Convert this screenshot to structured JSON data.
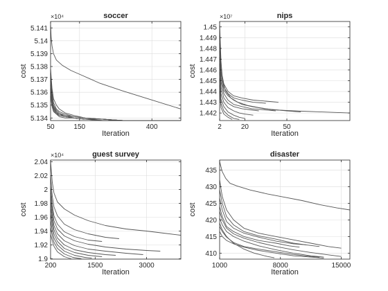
{
  "chart_data": [
    {
      "type": "line",
      "title": "soccer",
      "xlabel": "Iteration",
      "ylabel": "cost",
      "y_multiplier": "×10⁴",
      "xlim": [
        50,
        500
      ],
      "ylim": [
        5.1338,
        5.1415
      ],
      "xticks": [
        50,
        150,
        400
      ],
      "yticks": [
        5.134,
        5.135,
        5.136,
        5.137,
        5.138,
        5.139,
        5.14,
        5.141
      ],
      "ytick_labels": [
        "5.134",
        "5.135",
        "5.136",
        "5.137",
        "5.138",
        "5.139",
        "5.14",
        "5.141"
      ],
      "grid": true,
      "series": [
        {
          "x": [
            50,
            52,
            55,
            60,
            70,
            90,
            120,
            160,
            220,
            300,
            400,
            500
          ],
          "y": [
            5.1412,
            5.1403,
            5.1396,
            5.139,
            5.1385,
            5.1381,
            5.1377,
            5.1373,
            5.1367,
            5.1361,
            5.1354,
            5.1347
          ]
        },
        {
          "x": [
            50,
            55,
            60,
            70,
            80,
            100,
            130,
            170,
            230,
            300,
            400,
            500
          ],
          "y": [
            5.1378,
            5.1363,
            5.1355,
            5.135,
            5.1347,
            5.1344,
            5.1342,
            5.134,
            5.1339,
            5.1338,
            5.1338,
            5.1338
          ]
        },
        {
          "x": [
            50,
            55,
            60,
            70,
            80,
            100,
            130,
            170,
            230,
            300,
            400,
            500
          ],
          "y": [
            5.1375,
            5.136,
            5.1352,
            5.1347,
            5.1345,
            5.1343,
            5.1341,
            5.134,
            5.1339,
            5.1338,
            5.1338,
            5.1338
          ]
        },
        {
          "x": [
            50,
            55,
            60,
            70,
            80,
            100,
            130,
            170,
            230,
            300,
            400,
            500
          ],
          "y": [
            5.1372,
            5.1358,
            5.135,
            5.1346,
            5.1344,
            5.1342,
            5.1341,
            5.134,
            5.1339,
            5.1338,
            5.1338,
            5.1338
          ]
        },
        {
          "x": [
            50,
            55,
            60,
            70,
            80,
            100,
            130,
            170,
            230,
            300,
            400,
            500
          ],
          "y": [
            5.1369,
            5.1356,
            5.1349,
            5.1345,
            5.1343,
            5.1342,
            5.134,
            5.1339,
            5.1339,
            5.1338,
            5.1338,
            5.1338
          ]
        },
        {
          "x": [
            50,
            55,
            60,
            70,
            80,
            100,
            130,
            170,
            230,
            300,
            400,
            500
          ],
          "y": [
            5.1366,
            5.1354,
            5.1348,
            5.1344,
            5.1343,
            5.1341,
            5.134,
            5.1339,
            5.1339,
            5.1338,
            5.1338,
            5.1338
          ]
        },
        {
          "x": [
            50,
            55,
            60,
            70,
            80,
            100,
            130,
            170,
            230,
            300,
            400,
            500
          ],
          "y": [
            5.1363,
            5.1352,
            5.1347,
            5.1344,
            5.1342,
            5.1341,
            5.134,
            5.1339,
            5.1339,
            5.1338,
            5.1338,
            5.1338
          ]
        },
        {
          "x": [
            50,
            55,
            60,
            70,
            80,
            100,
            130,
            170,
            230,
            300,
            400,
            500
          ],
          "y": [
            5.136,
            5.135,
            5.1346,
            5.1343,
            5.1342,
            5.1341,
            5.134,
            5.1339,
            5.1338,
            5.1338,
            5.1338,
            5.1338
          ]
        },
        {
          "x": [
            50,
            55,
            60,
            70,
            80,
            100,
            130,
            170,
            230,
            300,
            400,
            500
          ],
          "y": [
            5.1357,
            5.1349,
            5.1345,
            5.1343,
            5.1341,
            5.134,
            5.134,
            5.1339,
            5.1338,
            5.1338,
            5.1338,
            5.1338
          ]
        }
      ]
    },
    {
      "type": "line",
      "title": "nips",
      "xlabel": "Iteration",
      "ylabel": "cost",
      "y_multiplier": "×10⁷",
      "xlim": [
        2,
        95
      ],
      "ylim": [
        1.4413,
        1.4505
      ],
      "xticks": [
        2,
        20,
        50
      ],
      "yticks": [
        1.442,
        1.443,
        1.444,
        1.445,
        1.446,
        1.447,
        1.448,
        1.449,
        1.45
      ],
      "ytick_labels": [
        "1.442",
        "1.443",
        "1.444",
        "1.445",
        "1.446",
        "1.447",
        "1.448",
        "1.449",
        "1.45"
      ],
      "grid": true,
      "series": [
        {
          "x": [
            2,
            3,
            4,
            6,
            10,
            15,
            22,
            30,
            40,
            55,
            75,
            95
          ],
          "y": [
            1.4502,
            1.4468,
            1.4452,
            1.4441,
            1.4434,
            1.443,
            1.4427,
            1.4425,
            1.4423,
            1.4422,
            1.4421,
            1.442
          ]
        },
        {
          "x": [
            2,
            3,
            5,
            8,
            12,
            18,
            26,
            35,
            44
          ],
          "y": [
            1.4492,
            1.446,
            1.4447,
            1.444,
            1.4436,
            1.4434,
            1.4432,
            1.4431,
            1.443
          ]
        },
        {
          "x": [
            2,
            3,
            5,
            8,
            12,
            18,
            26,
            35
          ],
          "y": [
            1.4485,
            1.4457,
            1.4444,
            1.4438,
            1.4434,
            1.4432,
            1.443,
            1.4429
          ]
        },
        {
          "x": [
            2,
            3,
            5,
            8,
            12,
            18,
            25,
            34,
            42,
            50,
            60
          ],
          "y": [
            1.4478,
            1.4453,
            1.4441,
            1.4436,
            1.4432,
            1.4428,
            1.4426,
            1.4424,
            1.4423,
            1.4422,
            1.4421
          ]
        },
        {
          "x": [
            2,
            3,
            5,
            8,
            12,
            18,
            25,
            34,
            42
          ],
          "y": [
            1.4472,
            1.4449,
            1.4438,
            1.4432,
            1.4428,
            1.4426,
            1.4424,
            1.4423,
            1.4422
          ]
        },
        {
          "x": [
            2,
            3,
            5,
            8,
            12,
            18,
            24,
            30
          ],
          "y": [
            1.4466,
            1.4444,
            1.4434,
            1.4429,
            1.4426,
            1.4424,
            1.4423,
            1.4422
          ]
        },
        {
          "x": [
            2,
            3,
            5,
            8,
            12,
            16,
            20,
            26
          ],
          "y": [
            1.4458,
            1.4438,
            1.443,
            1.4425,
            1.4422,
            1.442,
            1.4419,
            1.4418
          ]
        },
        {
          "x": [
            2,
            3,
            5,
            8,
            12,
            16,
            20
          ],
          "y": [
            1.4452,
            1.4433,
            1.4426,
            1.4421,
            1.4418,
            1.4416,
            1.4415
          ]
        },
        {
          "x": [
            2,
            3,
            5,
            8,
            12,
            16
          ],
          "y": [
            1.4446,
            1.4429,
            1.4422,
            1.4418,
            1.4415,
            1.4414
          ]
        },
        {
          "x": [
            2,
            3,
            5,
            8,
            11
          ],
          "y": [
            1.444,
            1.4425,
            1.4419,
            1.4416,
            1.4414
          ]
        }
      ]
    },
    {
      "type": "line",
      "title": "guest survey",
      "xlabel": "Iteration",
      "ylabel": "cost",
      "y_multiplier": "×10⁴",
      "xlim": [
        200,
        4000
      ],
      "ylim": [
        1.8995,
        2.0425
      ],
      "xticks": [
        200,
        1500,
        3000
      ],
      "yticks": [
        1.9,
        1.92,
        1.94,
        1.96,
        1.98,
        2.0,
        2.02,
        2.04
      ],
      "ytick_labels": [
        "1.9",
        "1.92",
        "1.94",
        "1.96",
        "1.98",
        "2",
        "2.02",
        "2.04"
      ],
      "grid": true,
      "series": [
        {
          "x": [
            200,
            250,
            300,
            400,
            600,
            900,
            1300,
            1800,
            2400,
            3000,
            3500,
            4000
          ],
          "y": [
            2.04,
            2.01,
            1.995,
            1.982,
            1.972,
            1.963,
            1.955,
            1.948,
            1.943,
            1.94,
            1.937,
            1.934
          ]
        },
        {
          "x": [
            200,
            250,
            300,
            400,
            600,
            900,
            1300,
            1800,
            2200
          ],
          "y": [
            2.02,
            1.99,
            1.975,
            1.962,
            1.95,
            1.942,
            1.936,
            1.931,
            1.929
          ]
        },
        {
          "x": [
            200,
            250,
            300,
            400,
            600,
            900,
            1300,
            1700
          ],
          "y": [
            2.005,
            1.978,
            1.962,
            1.95,
            1.939,
            1.932,
            1.927,
            1.925
          ]
        },
        {
          "x": [
            200,
            250,
            300,
            400,
            600,
            900,
            1300,
            1800,
            2400,
            3000,
            3400
          ],
          "y": [
            1.995,
            1.97,
            1.955,
            1.943,
            1.933,
            1.926,
            1.921,
            1.917,
            1.914,
            1.912,
            1.911
          ]
        },
        {
          "x": [
            200,
            250,
            300,
            400,
            600,
            900,
            1300,
            1800,
            2400,
            2900
          ],
          "y": [
            1.985,
            1.962,
            1.948,
            1.936,
            1.926,
            1.919,
            1.914,
            1.911,
            1.908,
            1.906
          ]
        },
        {
          "x": [
            200,
            250,
            300,
            400,
            600,
            900,
            1300,
            1800,
            2100
          ],
          "y": [
            1.975,
            1.955,
            1.942,
            1.93,
            1.92,
            1.913,
            1.909,
            1.906,
            1.905
          ]
        },
        {
          "x": [
            200,
            250,
            300,
            400,
            600,
            900,
            1300,
            1700
          ],
          "y": [
            1.965,
            1.948,
            1.936,
            1.925,
            1.915,
            1.909,
            1.905,
            1.903
          ]
        },
        {
          "x": [
            200,
            250,
            300,
            400,
            600,
            900,
            1200,
            1400
          ],
          "y": [
            1.955,
            1.94,
            1.93,
            1.92,
            1.911,
            1.905,
            1.902,
            1.901
          ]
        },
        {
          "x": [
            200,
            250,
            300,
            400,
            600,
            850,
            1100
          ],
          "y": [
            1.945,
            1.933,
            1.924,
            1.915,
            1.907,
            1.902,
            1.9
          ]
        },
        {
          "x": [
            200,
            250,
            300,
            400,
            600,
            800
          ],
          "y": [
            1.935,
            1.926,
            1.918,
            1.91,
            1.903,
            1.9
          ]
        }
      ]
    },
    {
      "type": "line",
      "title": "disaster",
      "xlabel": "Iteration",
      "ylabel": "cost",
      "xlim": [
        1000,
        16000
      ],
      "ylim": [
        408.2,
        438.0
      ],
      "xticks": [
        1000,
        8000,
        15000
      ],
      "yticks": [
        410,
        415,
        420,
        425,
        430,
        435
      ],
      "ytick_labels": [
        "410",
        "415",
        "420",
        "425",
        "430",
        "435"
      ],
      "grid": true,
      "series": [
        {
          "x": [
            1000,
            1300,
            1700,
            2200,
            3000,
            4500,
            6500,
            8500,
            10500,
            12500,
            14500,
            16000
          ],
          "y": [
            437.5,
            434.5,
            432.5,
            431.0,
            430.2,
            429.0,
            427.8,
            426.8,
            425.8,
            424.6,
            423.6,
            423.0
          ]
        },
        {
          "x": [
            1000,
            1300,
            1800,
            2600,
            3800,
            5500,
            7500,
            9500,
            11500,
            13500,
            15000
          ],
          "y": [
            432.0,
            427.0,
            423.0,
            420.0,
            417.5,
            416.0,
            415.0,
            414.0,
            413.0,
            412.0,
            411.5
          ]
        },
        {
          "x": [
            1000,
            1300,
            1800,
            2600,
            3800,
            5500,
            7500,
            9500,
            11500,
            12500
          ],
          "y": [
            429.0,
            425.0,
            421.0,
            418.5,
            416.5,
            415.2,
            414.2,
            413.0,
            412.3,
            412.0
          ]
        },
        {
          "x": [
            1000,
            1300,
            1800,
            2600,
            3800,
            5500,
            7500,
            9500,
            11000
          ],
          "y": [
            426.5,
            423.0,
            419.5,
            417.5,
            416.0,
            414.8,
            413.6,
            412.8,
            412.5
          ]
        },
        {
          "x": [
            1000,
            1300,
            1800,
            2600,
            3800,
            5500,
            7500,
            9000,
            10200
          ],
          "y": [
            424.0,
            421.0,
            418.0,
            416.5,
            415.0,
            413.8,
            413.0,
            412.2,
            411.8
          ]
        },
        {
          "x": [
            1000,
            1300,
            1800,
            2600,
            3800,
            5500,
            7500,
            9500,
            11500,
            13500,
            15000
          ],
          "y": [
            422.5,
            420.0,
            417.5,
            415.8,
            414.5,
            413.2,
            412.0,
            411.0,
            410.2,
            409.5,
            409.0
          ]
        },
        {
          "x": [
            1000,
            1300,
            1800,
            2600,
            3800,
            5500,
            7500,
            9500,
            11500,
            13000
          ],
          "y": [
            420.5,
            418.5,
            416.5,
            415.0,
            413.6,
            412.2,
            411.0,
            410.0,
            409.2,
            408.8
          ]
        },
        {
          "x": [
            1000,
            1300,
            1800,
            2600,
            3800,
            5000,
            6500,
            7300
          ],
          "y": [
            419.0,
            417.0,
            415.0,
            413.0,
            411.2,
            410.0,
            409.0,
            408.6
          ]
        },
        {
          "x": [
            1000,
            1300,
            1800,
            2600,
            3800,
            5500,
            7500,
            9500,
            11500,
            12500
          ],
          "y": [
            418.0,
            416.5,
            414.8,
            413.2,
            412.0,
            411.2,
            410.4,
            409.6,
            409.0,
            408.8
          ]
        },
        {
          "x": [
            1000,
            1300,
            1800,
            2600,
            3800,
            5500,
            7500,
            9500,
            11500,
            13000
          ],
          "y": [
            416.5,
            415.0,
            413.8,
            412.8,
            411.8,
            410.8,
            410.0,
            409.2,
            408.8,
            408.5
          ]
        }
      ]
    }
  ]
}
